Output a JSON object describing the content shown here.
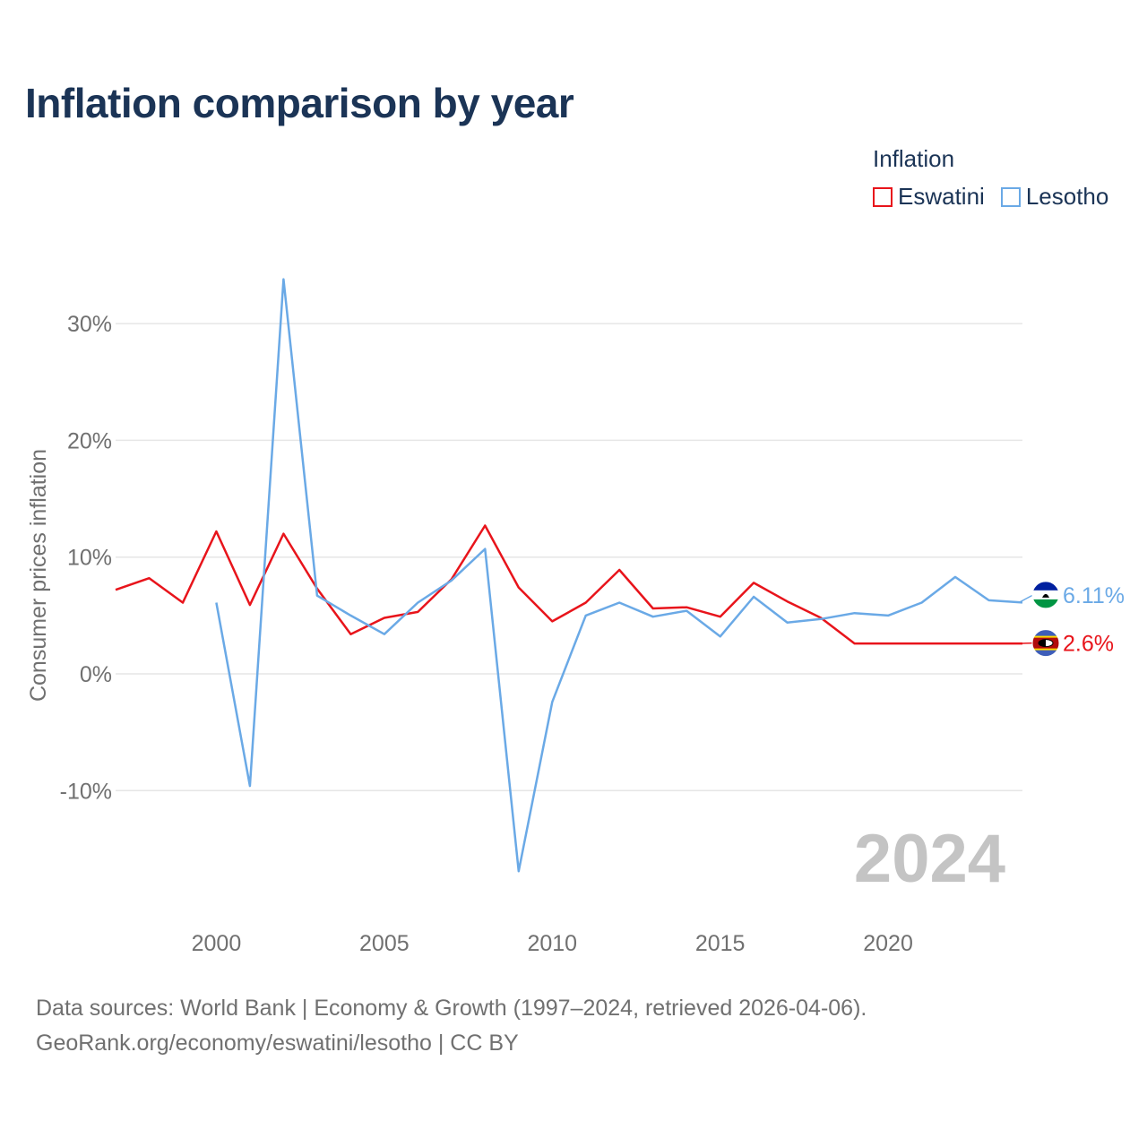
{
  "chart_data": {
    "type": "line",
    "title": "Inflation comparison by year",
    "legend_title": "Inflation",
    "ylabel": "Consumer prices inflation",
    "xlabel": "",
    "xlim": [
      1997,
      2024
    ],
    "ylim": [
      -20,
      35
    ],
    "x_ticks": [
      2000,
      2005,
      2010,
      2015,
      2020
    ],
    "y_ticks": [
      -10,
      0,
      10,
      20,
      30
    ],
    "y_tick_labels": [
      "-10%",
      "0%",
      "10%",
      "20%",
      "30%"
    ],
    "year_watermark": "2024",
    "legend_position": "top-right",
    "series": [
      {
        "name": "Eswatini",
        "color": "#e8141b",
        "end_label": "2.6%",
        "flag_icon": "eswatini-flag-icon",
        "points": [
          [
            1997,
            7.2
          ],
          [
            1998,
            8.2
          ],
          [
            1999,
            6.1
          ],
          [
            2000,
            12.2
          ],
          [
            2001,
            5.9
          ],
          [
            2002,
            12.0
          ],
          [
            2003,
            7.3
          ],
          [
            2004,
            3.4
          ],
          [
            2005,
            4.8
          ],
          [
            2006,
            5.3
          ],
          [
            2007,
            8.1
          ],
          [
            2008,
            12.7
          ],
          [
            2009,
            7.4
          ],
          [
            2010,
            4.5
          ],
          [
            2011,
            6.1
          ],
          [
            2012,
            8.9
          ],
          [
            2013,
            5.6
          ],
          [
            2014,
            5.7
          ],
          [
            2015,
            4.9
          ],
          [
            2016,
            7.8
          ],
          [
            2017,
            6.2
          ],
          [
            2018,
            4.8
          ],
          [
            2019,
            2.6
          ],
          [
            2020,
            2.6
          ],
          [
            2021,
            2.6
          ],
          [
            2022,
            2.6
          ],
          [
            2023,
            2.6
          ],
          [
            2024,
            2.6
          ]
        ]
      },
      {
        "name": "Lesotho",
        "color": "#6aa9e6",
        "end_label": "6.11%",
        "flag_icon": "lesotho-flag-icon",
        "points": [
          [
            2000,
            6.1
          ],
          [
            2001,
            -9.6
          ],
          [
            2002,
            33.8
          ],
          [
            2003,
            6.7
          ],
          [
            2004,
            5.0
          ],
          [
            2005,
            3.4
          ],
          [
            2006,
            6.1
          ],
          [
            2007,
            8.0
          ],
          [
            2008,
            10.7
          ],
          [
            2009,
            -16.9
          ],
          [
            2010,
            -2.4
          ],
          [
            2011,
            5.0
          ],
          [
            2012,
            6.1
          ],
          [
            2013,
            4.9
          ],
          [
            2014,
            5.4
          ],
          [
            2015,
            3.2
          ],
          [
            2016,
            6.6
          ],
          [
            2017,
            4.4
          ],
          [
            2018,
            4.7
          ],
          [
            2019,
            5.2
          ],
          [
            2020,
            5.0
          ],
          [
            2021,
            6.1
          ],
          [
            2022,
            8.3
          ],
          [
            2023,
            6.3
          ],
          [
            2024,
            6.11
          ]
        ]
      }
    ]
  },
  "footer": {
    "line1": "Data sources: World Bank | Economy & Growth (1997–2024, retrieved 2026-04-06).",
    "line2": "GeoRank.org/economy/eswatini/lesotho | CC BY"
  }
}
